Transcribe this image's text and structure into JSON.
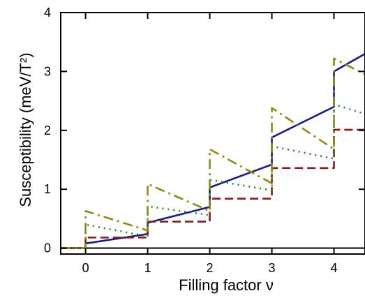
{
  "chart_data": {
    "type": "line",
    "xlabel": "Filling factor ν",
    "ylabel": "Susceptibility (meV/T²)",
    "xlim": [
      -0.4,
      4.5
    ],
    "ylim": [
      -0.1,
      4.0
    ],
    "x_ticks": [
      0,
      1,
      2,
      3,
      4
    ],
    "y_ticks": [
      0,
      1,
      2,
      3,
      4
    ],
    "grid": false,
    "legend": "none",
    "series": [
      {
        "style": "solid",
        "color": "#1a1a8c",
        "points": [
          [
            -0.4,
            0.0
          ],
          [
            0.0,
            0.0
          ],
          [
            0.0,
            0.08
          ],
          [
            1.0,
            0.24
          ],
          [
            1.0,
            0.43
          ],
          [
            2.0,
            0.7
          ],
          [
            2.0,
            1.03
          ],
          [
            3.0,
            1.42
          ],
          [
            3.0,
            1.88
          ],
          [
            4.0,
            2.4
          ],
          [
            4.0,
            3.0
          ],
          [
            4.5,
            3.3
          ]
        ]
      },
      {
        "style": "dashed",
        "color": "#8b1a1a",
        "points": [
          [
            -0.4,
            0.0
          ],
          [
            0.0,
            0.0
          ],
          [
            0.0,
            0.18
          ],
          [
            1.0,
            0.18
          ],
          [
            1.0,
            0.45
          ],
          [
            2.0,
            0.45
          ],
          [
            2.0,
            0.84
          ],
          [
            3.0,
            0.84
          ],
          [
            3.0,
            1.36
          ],
          [
            4.0,
            1.36
          ],
          [
            4.0,
            2.01
          ],
          [
            4.5,
            2.01
          ]
        ]
      },
      {
        "style": "dotted",
        "color": "#1a8c1a",
        "points": [
          [
            -0.4,
            0.0
          ],
          [
            0.0,
            0.0
          ],
          [
            0.0,
            0.4
          ],
          [
            1.0,
            0.2
          ],
          [
            1.0,
            0.71
          ],
          [
            2.0,
            0.56
          ],
          [
            2.0,
            1.16
          ],
          [
            3.0,
            0.98
          ],
          [
            3.0,
            1.73
          ],
          [
            4.0,
            1.52
          ],
          [
            4.0,
            2.44
          ],
          [
            4.5,
            2.28
          ]
        ]
      },
      {
        "style": "dashdot",
        "color": "#8c8c14",
        "points": [
          [
            -0.4,
            0.0
          ],
          [
            0.0,
            0.0
          ],
          [
            0.0,
            0.63
          ],
          [
            1.0,
            0.3
          ],
          [
            1.0,
            1.09
          ],
          [
            2.0,
            0.63
          ],
          [
            2.0,
            1.68
          ],
          [
            3.0,
            1.1
          ],
          [
            3.0,
            2.38
          ],
          [
            4.0,
            1.68
          ],
          [
            4.0,
            3.22
          ],
          [
            4.5,
            2.95
          ]
        ]
      }
    ]
  }
}
